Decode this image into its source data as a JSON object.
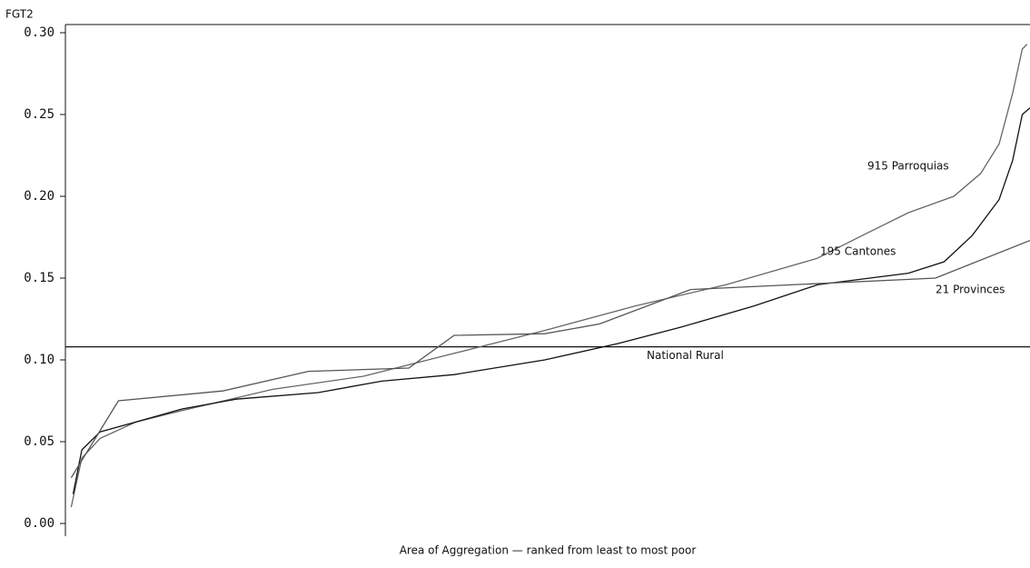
{
  "chart_data": {
    "type": "line",
    "y_label": "FGT2",
    "x_label": "Area of Aggregation — ranked from least to most poor",
    "xlim": [
      0,
      1
    ],
    "ylim": [
      0,
      0.3
    ],
    "yticks": [
      {
        "value": 0,
        "label": "0.00"
      },
      0.05,
      {
        "value": 0.1,
        "label": "0.10"
      },
      0.15,
      {
        "value": 0.2,
        "label": "0.20"
      },
      0.25,
      {
        "value": 0.3,
        "label": "0.30"
      }
    ],
    "series": [
      {
        "name": "915 Parroquias",
        "color": "#666666",
        "x": [
          0.006,
          0.017,
          0.036,
          0.073,
          0.121,
          0.215,
          0.309,
          0.403,
          0.497,
          0.591,
          0.685,
          0.779,
          0.826,
          0.874,
          0.921,
          0.949,
          0.968,
          0.982,
          0.992,
          0.997
        ],
        "values": [
          0.01,
          0.04,
          0.052,
          0.062,
          0.069,
          0.082,
          0.09,
          0.104,
          0.118,
          0.133,
          0.146,
          0.162,
          0.176,
          0.19,
          0.2,
          0.214,
          0.232,
          0.263,
          0.29,
          0.293
        ]
      },
      {
        "name": "195 Cantones",
        "color": "#111111",
        "x": [
          0.008,
          0.017,
          0.036,
          0.073,
          0.121,
          0.177,
          0.262,
          0.328,
          0.403,
          0.497,
          0.573,
          0.638,
          0.714,
          0.78,
          0.874,
          0.911,
          0.94,
          0.968,
          0.982,
          0.992,
          1.0
        ],
        "values": [
          0.018,
          0.045,
          0.056,
          0.062,
          0.07,
          0.076,
          0.08,
          0.087,
          0.091,
          0.1,
          0.11,
          0.12,
          0.133,
          0.146,
          0.153,
          0.16,
          0.176,
          0.198,
          0.222,
          0.25,
          0.254
        ]
      },
      {
        "name": "21 Provinces",
        "color": "#555555",
        "x": [
          0.006,
          0.055,
          0.163,
          0.252,
          0.356,
          0.403,
          0.497,
          0.554,
          0.648,
          0.902,
          1.0
        ],
        "values": [
          0.028,
          0.075,
          0.081,
          0.093,
          0.095,
          0.115,
          0.116,
          0.122,
          0.143,
          0.15,
          0.173
        ]
      }
    ],
    "reference_lines": [
      {
        "name": "National Rural",
        "value": 0.108,
        "color": "#111111"
      }
    ]
  }
}
